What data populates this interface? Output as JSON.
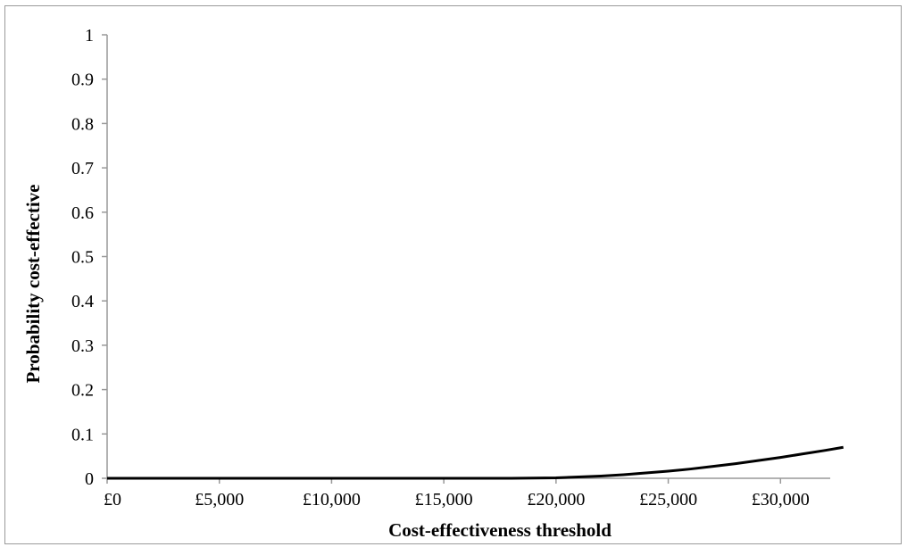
{
  "chart_data": {
    "type": "line",
    "title": "",
    "xlabel": "Cost-effectiveness threshold",
    "ylabel": "Probability cost-effective",
    "xlim": [
      0,
      35000
    ],
    "ylim": [
      0,
      1
    ],
    "x_ticks": [
      0,
      5000,
      10000,
      15000,
      20000,
      25000,
      30000
    ],
    "x_tick_labels": [
      "£0",
      "£5,000",
      "£10,000",
      "£15,000",
      "£20,000",
      "£25,000",
      "£30,000"
    ],
    "y_ticks": [
      0,
      0.1,
      0.2,
      0.3,
      0.4,
      0.5,
      0.6,
      0.7,
      0.8,
      0.9,
      1
    ],
    "y_tick_labels": [
      "0",
      "0.1",
      "0.2",
      "0.3",
      "0.4",
      "0.5",
      "0.6",
      "0.7",
      "0.8",
      "0.9",
      "1"
    ],
    "grid": false,
    "legend": "none",
    "series": [
      {
        "color": "#000000",
        "x": [
          0,
          5000,
          10000,
          15000,
          18000,
          20000,
          21000,
          22000,
          23000,
          24000,
          25000,
          26000,
          27000,
          28000,
          29000,
          30000,
          31000,
          32000,
          32800
        ],
        "y": [
          0,
          0,
          0,
          0,
          0,
          0.001,
          0.003,
          0.005,
          0.008,
          0.012,
          0.016,
          0.021,
          0.027,
          0.033,
          0.04,
          0.047,
          0.055,
          0.063,
          0.07
        ]
      }
    ]
  }
}
